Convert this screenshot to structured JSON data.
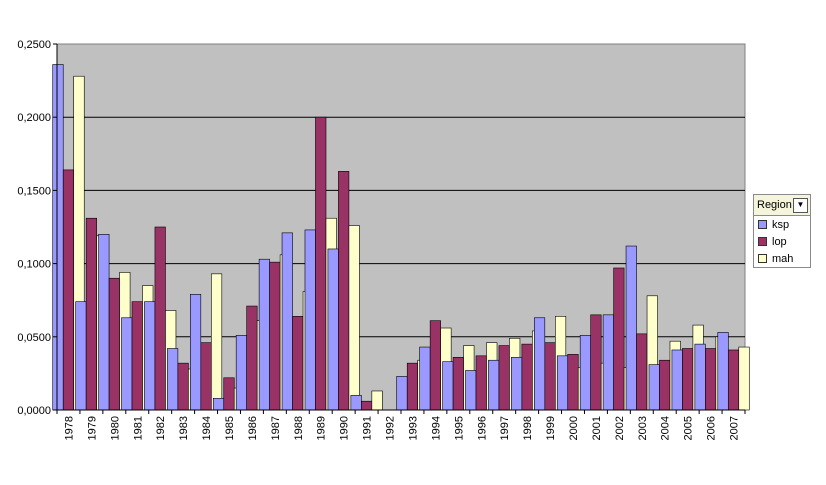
{
  "chart_data": {
    "type": "bar",
    "categories": [
      "1978",
      "1979",
      "1980",
      "1981",
      "1982",
      "1983",
      "1984",
      "1985",
      "1986",
      "1987",
      "1988",
      "1989",
      "1990",
      "1991",
      "1992",
      "1993",
      "1994",
      "1995",
      "1996",
      "1997",
      "1998",
      "1999",
      "2000",
      "2001",
      "2002",
      "2003",
      "2004",
      "2005",
      "2006",
      "2007"
    ],
    "series": [
      {
        "name": "ksp",
        "color": "#9999ff",
        "values": [
          0.236,
          0.074,
          0.12,
          0.063,
          0.074,
          0.042,
          0.079,
          0.008,
          0.051,
          0.103,
          0.121,
          0.123,
          0.11,
          0.01,
          0.0,
          0.023,
          0.043,
          0.033,
          0.027,
          0.034,
          0.036,
          0.063,
          0.037,
          0.051,
          0.065,
          0.112,
          0.031,
          0.041,
          0.045,
          0.053
        ]
      },
      {
        "name": "lop",
        "color": "#993366",
        "values": [
          0.164,
          0.131,
          0.09,
          0.074,
          0.125,
          0.032,
          0.046,
          0.022,
          0.071,
          0.101,
          0.064,
          0.2,
          0.163,
          0.006,
          0.0,
          0.032,
          0.061,
          0.036,
          0.037,
          0.044,
          0.045,
          0.046,
          0.038,
          0.065,
          0.097,
          0.052,
          0.034,
          0.042,
          0.042,
          0.041
        ]
      },
      {
        "name": "mah",
        "color": "#ffffcc",
        "values": [
          0.228,
          0.119,
          0.094,
          0.085,
          0.068,
          0.028,
          0.093,
          0.015,
          0.061,
          0.106,
          0.081,
          0.131,
          0.126,
          0.013,
          0.0,
          0.034,
          0.056,
          0.044,
          0.046,
          0.049,
          0.054,
          0.064,
          0.029,
          0.032,
          0.029,
          0.078,
          0.047,
          0.058,
          0.05,
          0.043
        ]
      }
    ],
    "y_tick_labels": [
      "0,0000",
      "0,0500",
      "0,1000",
      "0,1500",
      "0,2000",
      "0,2500"
    ],
    "ylim": [
      0,
      0.25
    ],
    "grid": true,
    "plot_background": "#c0c0c0",
    "legend_position": "right",
    "legend_title": "Region",
    "title": "",
    "xlabel": "",
    "ylabel": ""
  }
}
